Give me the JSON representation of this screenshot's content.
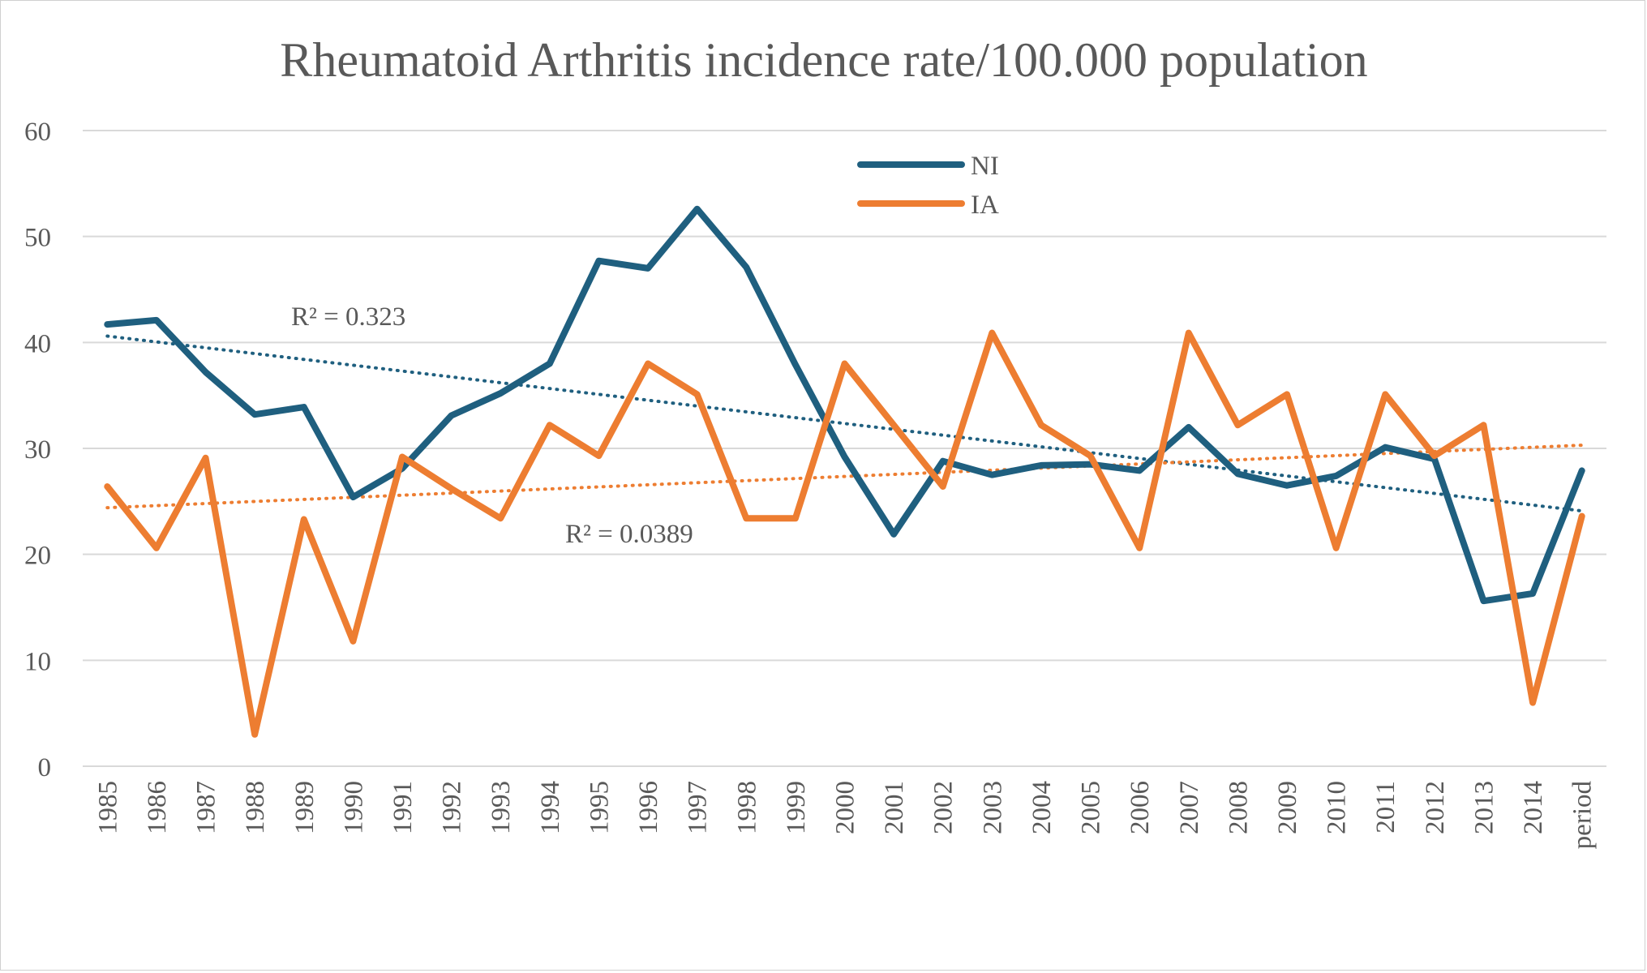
{
  "chart_data": {
    "type": "line",
    "title": "Rheumatoid Arthritis incidence rate/100.000 population",
    "xlabel": "",
    "ylabel": "",
    "categories": [
      "1985",
      "1986",
      "1987",
      "1988",
      "1989",
      "1990",
      "1991",
      "1992",
      "1993",
      "1994",
      "1995",
      "1996",
      "1997",
      "1998",
      "1999",
      "2000",
      "2001",
      "2002",
      "2003",
      "2004",
      "2005",
      "2006",
      "2007",
      "2008",
      "2009",
      "2010",
      "2011",
      "2012",
      "2013",
      "2014",
      "period"
    ],
    "ylim": [
      0,
      60
    ],
    "yticks": [
      "0",
      "10",
      "20",
      "30",
      "40",
      "50",
      "60"
    ],
    "grid": true,
    "legend_position": "top-center",
    "series": [
      {
        "name": "NI",
        "color": "#1f5f7f",
        "values": [
          41.7,
          42.1,
          37.2,
          33.2,
          33.9,
          25.4,
          28.1,
          33.1,
          35.2,
          38.0,
          47.7,
          47.0,
          52.6,
          47.1,
          37.9,
          29.2,
          21.9,
          28.8,
          27.5,
          28.4,
          28.5,
          27.9,
          32.0,
          27.6,
          26.5,
          27.4,
          30.1,
          29.0,
          15.6,
          16.3,
          27.9
        ]
      },
      {
        "name": "IA",
        "color": "#ed7d31",
        "values": [
          26.4,
          20.6,
          29.1,
          3.0,
          23.3,
          11.8,
          29.2,
          26.2,
          23.4,
          32.2,
          29.3,
          38.0,
          35.1,
          23.4,
          23.4,
          38.0,
          32.2,
          26.4,
          40.9,
          32.2,
          29.3,
          20.6,
          40.9,
          32.2,
          35.1,
          20.6,
          35.1,
          29.3,
          32.2,
          6.0,
          23.6
        ]
      }
    ],
    "trendlines": [
      {
        "series": "NI",
        "style": "dotted",
        "start": 40.6,
        "end": 24.1,
        "label": "R² = 0.323"
      },
      {
        "series": "IA",
        "style": "dotted",
        "start": 24.4,
        "end": 30.3,
        "label": "R² = 0.0389"
      }
    ]
  }
}
